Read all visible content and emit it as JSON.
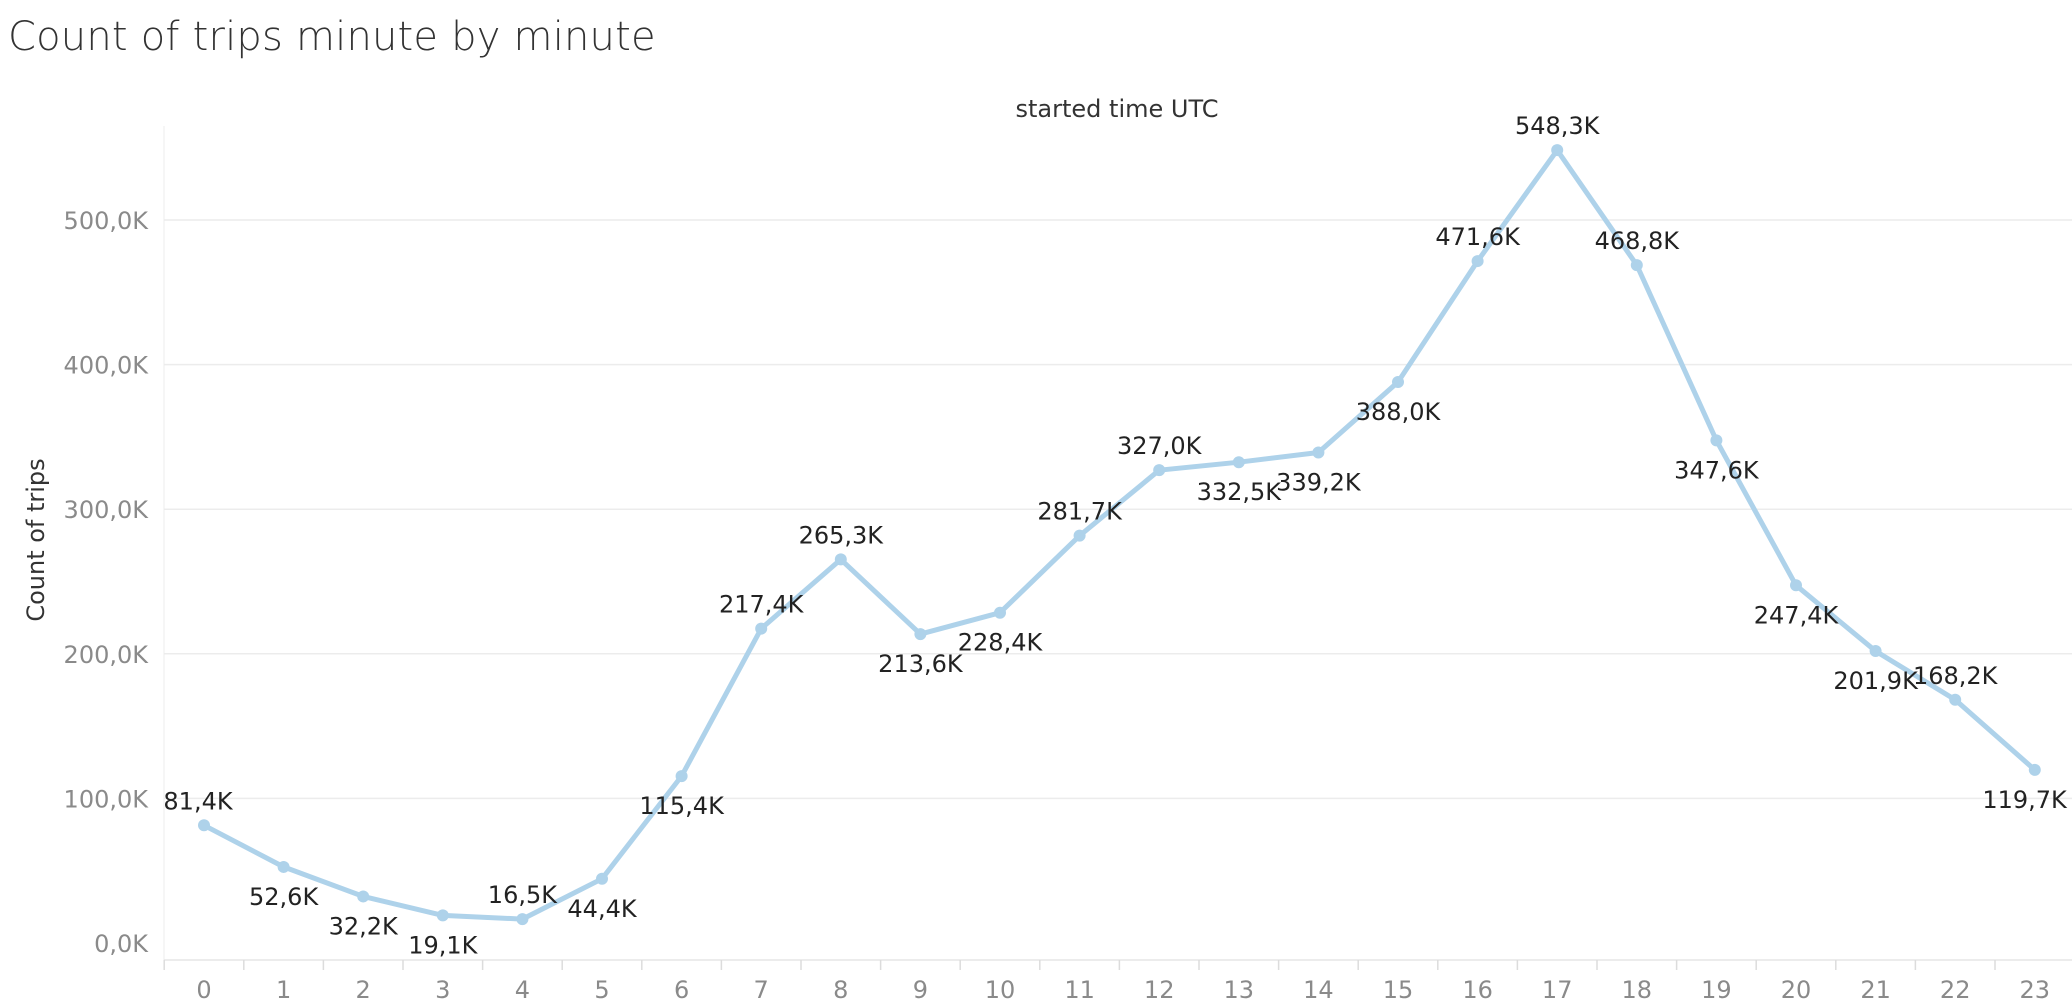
{
  "chart_data": {
    "type": "line",
    "title": "Count of trips minute by minute",
    "xlabel": "started time UTC",
    "ylabel": "Count of trips",
    "categories": [
      "0",
      "1",
      "2",
      "3",
      "4",
      "5",
      "6",
      "7",
      "8",
      "9",
      "10",
      "11",
      "12",
      "13",
      "14",
      "15",
      "16",
      "17",
      "18",
      "19",
      "20",
      "21",
      "22",
      "23"
    ],
    "values": [
      81.4,
      52.6,
      32.2,
      19.1,
      16.5,
      44.4,
      115.4,
      217.4,
      265.3,
      213.6,
      228.4,
      281.7,
      327.0,
      332.5,
      339.2,
      388.0,
      471.6,
      548.3,
      468.8,
      347.6,
      247.4,
      201.9,
      168.2,
      119.7
    ],
    "value_unit": "thousands",
    "data_labels": [
      "81,4K",
      "52,6K",
      "32,2K",
      "19,1K",
      "16,5K",
      "44,4K",
      "115,4K",
      "217,4K",
      "265,3K",
      "213,6K",
      "228,4K",
      "281,7K",
      "327,0K",
      "332,5K",
      "339,2K",
      "388,0K",
      "471,6K",
      "548,3K",
      "468,8K",
      "347,6K",
      "247,4K",
      "201,9K",
      "168,2K",
      "119,7K"
    ],
    "label_positions": [
      "above",
      "below",
      "below",
      "below",
      "above",
      "below",
      "below",
      "above",
      "above",
      "below",
      "below",
      "above",
      "above",
      "below",
      "below",
      "below",
      "above",
      "above",
      "above",
      "below",
      "below",
      "below",
      "above",
      "below"
    ],
    "y_ticks": [
      0,
      100,
      200,
      300,
      400,
      500
    ],
    "y_tick_labels": [
      "0,0K",
      "100,0K",
      "200,0K",
      "300,0K",
      "400,0K",
      "500,0K"
    ],
    "ylim": [
      0,
      548.3
    ],
    "grid": true,
    "line_color": "#aed2ea"
  }
}
